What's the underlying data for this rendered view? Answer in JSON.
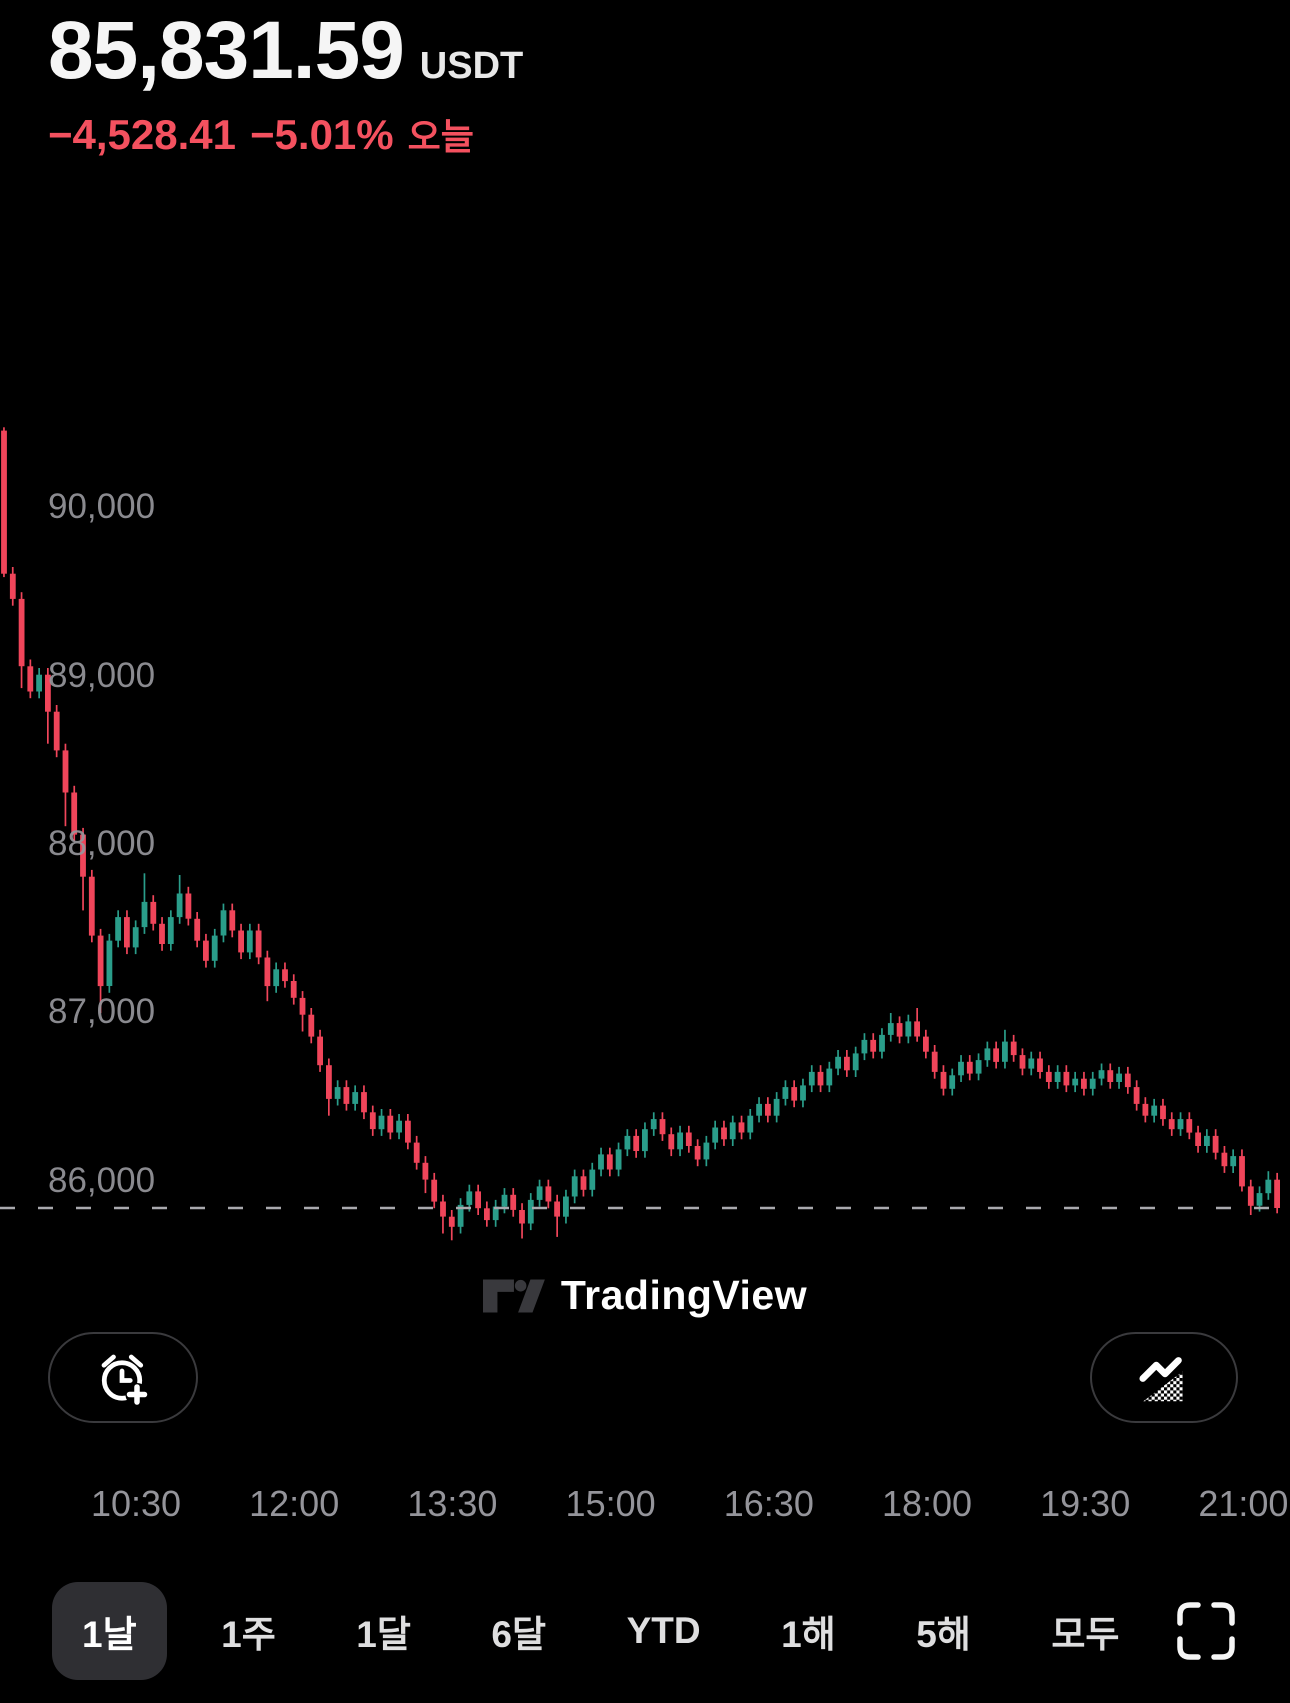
{
  "header": {
    "price": "85,831.59",
    "currency": "USDT",
    "change_abs": "−4,528.41",
    "change_pct": "−5.01%",
    "change_period": "오늘",
    "change_color": "#f4515f"
  },
  "watermark": {
    "label": "TradingView",
    "logo": "tradingview-logo",
    "color": "#39393d"
  },
  "buttons": {
    "left_icon": "alarm-clock-plus",
    "right_icon": "area-chart-style",
    "fullscreen_icon": "expand-corners"
  },
  "range_tabs": {
    "items": [
      {
        "label": "1날",
        "selected": true
      },
      {
        "label": "1주",
        "selected": false
      },
      {
        "label": "1달",
        "selected": false
      },
      {
        "label": "6달",
        "selected": false
      },
      {
        "label": "YTD",
        "selected": false
      },
      {
        "label": "1해",
        "selected": false
      },
      {
        "label": "5해",
        "selected": false
      },
      {
        "label": "모두",
        "selected": false
      }
    ]
  },
  "chart_data": {
    "type": "candlestick",
    "interval_minutes": 5,
    "time_start": "09:15",
    "current_price": 85831.59,
    "current_price_line": "dashed",
    "up_color": "#2a9d8a",
    "down_color": "#f0455a",
    "axis_text_color": "#96969c",
    "y_axis": {
      "ticks": [
        90000,
        89000,
        88000,
        87000,
        86000
      ],
      "tick_labels": [
        "90,000",
        "89,000",
        "88,000",
        "87,000",
        "86,000"
      ]
    },
    "x_axis": {
      "tick_labels": [
        "10:30",
        "12:00",
        "13:30",
        "15:00",
        "16:30",
        "18:00",
        "19:30",
        "21:00"
      ]
    },
    "candles": [
      [
        90450,
        90470,
        89580,
        89600
      ],
      [
        89600,
        89640,
        89410,
        89450
      ],
      [
        89450,
        89490,
        88920,
        89050
      ],
      [
        89050,
        89090,
        88860,
        88900
      ],
      [
        88900,
        89040,
        88860,
        89000
      ],
      [
        89000,
        89040,
        88590,
        88780
      ],
      [
        88780,
        88820,
        88510,
        88550
      ],
      [
        88550,
        88590,
        88100,
        88300
      ],
      [
        88300,
        88340,
        88010,
        88050
      ],
      [
        88050,
        88090,
        87600,
        87800
      ],
      [
        87800,
        87840,
        87410,
        87450
      ],
      [
        87450,
        87490,
        86990,
        87150
      ],
      [
        87150,
        87460,
        87110,
        87420
      ],
      [
        87420,
        87600,
        87380,
        87560
      ],
      [
        87560,
        87600,
        87340,
        87380
      ],
      [
        87380,
        87540,
        87340,
        87500
      ],
      [
        87500,
        87820,
        87460,
        87650
      ],
      [
        87650,
        87690,
        87480,
        87520
      ],
      [
        87520,
        87560,
        87360,
        87400
      ],
      [
        87400,
        87600,
        87360,
        87560
      ],
      [
        87560,
        87810,
        87520,
        87700
      ],
      [
        87700,
        87740,
        87510,
        87550
      ],
      [
        87550,
        87590,
        87380,
        87420
      ],
      [
        87420,
        87460,
        87260,
        87300
      ],
      [
        87300,
        87490,
        87260,
        87450
      ],
      [
        87450,
        87640,
        87410,
        87600
      ],
      [
        87600,
        87640,
        87440,
        87480
      ],
      [
        87480,
        87520,
        87310,
        87350
      ],
      [
        87350,
        87520,
        87310,
        87480
      ],
      [
        87480,
        87520,
        87280,
        87320
      ],
      [
        87320,
        87360,
        87060,
        87150
      ],
      [
        87150,
        87290,
        87110,
        87250
      ],
      [
        87250,
        87290,
        87140,
        87180
      ],
      [
        87180,
        87220,
        87040,
        87080
      ],
      [
        87080,
        87120,
        86880,
        86980
      ],
      [
        86980,
        87020,
        86810,
        86850
      ],
      [
        86850,
        86890,
        86640,
        86680
      ],
      [
        86680,
        86720,
        86380,
        86480
      ],
      [
        86480,
        86590,
        86440,
        86550
      ],
      [
        86550,
        86590,
        86410,
        86450
      ],
      [
        86450,
        86560,
        86410,
        86520
      ],
      [
        86520,
        86560,
        86360,
        86400
      ],
      [
        86400,
        86440,
        86260,
        86300
      ],
      [
        86300,
        86420,
        86260,
        86380
      ],
      [
        86380,
        86420,
        86240,
        86280
      ],
      [
        86280,
        86390,
        86240,
        86350
      ],
      [
        86350,
        86390,
        86180,
        86220
      ],
      [
        86220,
        86260,
        86060,
        86100
      ],
      [
        86100,
        86140,
        85920,
        86000
      ],
      [
        86000,
        86040,
        85830,
        85870
      ],
      [
        85870,
        85910,
        85680,
        85780
      ],
      [
        85780,
        85820,
        85640,
        85720
      ],
      [
        85720,
        85890,
        85680,
        85850
      ],
      [
        85850,
        85970,
        85810,
        85930
      ],
      [
        85930,
        85970,
        85790,
        85830
      ],
      [
        85830,
        85870,
        85720,
        85760
      ],
      [
        85760,
        85880,
        85720,
        85840
      ],
      [
        85840,
        85950,
        85800,
        85910
      ],
      [
        85910,
        85950,
        85780,
        85820
      ],
      [
        85820,
        85860,
        85650,
        85740
      ],
      [
        85740,
        85920,
        85700,
        85880
      ],
      [
        85880,
        86000,
        85840,
        85960
      ],
      [
        85960,
        86000,
        85830,
        85870
      ],
      [
        85870,
        85910,
        85660,
        85780
      ],
      [
        85780,
        85940,
        85740,
        85900
      ],
      [
        85900,
        86060,
        85860,
        86020
      ],
      [
        86020,
        86060,
        85900,
        85940
      ],
      [
        85940,
        86100,
        85900,
        86060
      ],
      [
        86060,
        86190,
        86020,
        86150
      ],
      [
        86150,
        86190,
        86020,
        86060
      ],
      [
        86060,
        86220,
        86020,
        86180
      ],
      [
        86180,
        86300,
        86140,
        86260
      ],
      [
        86260,
        86300,
        86130,
        86170
      ],
      [
        86170,
        86340,
        86130,
        86300
      ],
      [
        86300,
        86400,
        86260,
        86360
      ],
      [
        86360,
        86400,
        86230,
        86270
      ],
      [
        86270,
        86310,
        86140,
        86180
      ],
      [
        86180,
        86320,
        86140,
        86280
      ],
      [
        86280,
        86320,
        86160,
        86200
      ],
      [
        86200,
        86240,
        86080,
        86120
      ],
      [
        86120,
        86260,
        86080,
        86220
      ],
      [
        86220,
        86350,
        86180,
        86310
      ],
      [
        86310,
        86350,
        86200,
        86240
      ],
      [
        86240,
        86380,
        86200,
        86340
      ],
      [
        86340,
        86380,
        86240,
        86280
      ],
      [
        86280,
        86420,
        86240,
        86380
      ],
      [
        86380,
        86490,
        86340,
        86450
      ],
      [
        86450,
        86490,
        86340,
        86380
      ],
      [
        86380,
        86520,
        86340,
        86480
      ],
      [
        86480,
        86590,
        86440,
        86550
      ],
      [
        86550,
        86590,
        86430,
        86470
      ],
      [
        86470,
        86600,
        86430,
        86560
      ],
      [
        86560,
        86680,
        86520,
        86640
      ],
      [
        86640,
        86680,
        86520,
        86560
      ],
      [
        86560,
        86700,
        86520,
        86660
      ],
      [
        86660,
        86770,
        86620,
        86730
      ],
      [
        86730,
        86770,
        86610,
        86650
      ],
      [
        86650,
        86790,
        86610,
        86750
      ],
      [
        86750,
        86870,
        86710,
        86830
      ],
      [
        86830,
        86870,
        86720,
        86760
      ],
      [
        86760,
        86900,
        86720,
        86860
      ],
      [
        86860,
        86990,
        86820,
        86930
      ],
      [
        86930,
        86970,
        86810,
        86850
      ],
      [
        86850,
        86980,
        86810,
        86940
      ],
      [
        86940,
        87020,
        86820,
        86850
      ],
      [
        86850,
        86890,
        86720,
        86760
      ],
      [
        86760,
        86800,
        86600,
        86640
      ],
      [
        86640,
        86680,
        86500,
        86540
      ],
      [
        86540,
        86660,
        86500,
        86620
      ],
      [
        86620,
        86740,
        86580,
        86700
      ],
      [
        86700,
        86740,
        86590,
        86630
      ],
      [
        86630,
        86750,
        86590,
        86710
      ],
      [
        86710,
        86820,
        86670,
        86780
      ],
      [
        86780,
        86820,
        86660,
        86700
      ],
      [
        86700,
        86890,
        86660,
        86820
      ],
      [
        86820,
        86860,
        86700,
        86740
      ],
      [
        86740,
        86780,
        86620,
        86660
      ],
      [
        86660,
        86760,
        86620,
        86720
      ],
      [
        86720,
        86760,
        86600,
        86640
      ],
      [
        86640,
        86680,
        86540,
        86580
      ],
      [
        86580,
        86680,
        86540,
        86640
      ],
      [
        86640,
        86680,
        86520,
        86560
      ],
      [
        86560,
        86640,
        86520,
        86600
      ],
      [
        86600,
        86640,
        86500,
        86540
      ],
      [
        86540,
        86640,
        86500,
        86600
      ],
      [
        86600,
        86690,
        86560,
        86650
      ],
      [
        86650,
        86690,
        86540,
        86580
      ],
      [
        86580,
        86670,
        86540,
        86630
      ],
      [
        86630,
        86670,
        86510,
        86550
      ],
      [
        86550,
        86590,
        86410,
        86450
      ],
      [
        86450,
        86490,
        86340,
        86380
      ],
      [
        86380,
        86480,
        86340,
        86440
      ],
      [
        86440,
        86480,
        86320,
        86360
      ],
      [
        86360,
        86400,
        86260,
        86300
      ],
      [
        86300,
        86400,
        86260,
        86360
      ],
      [
        86360,
        86400,
        86240,
        86280
      ],
      [
        86280,
        86320,
        86160,
        86200
      ],
      [
        86200,
        86300,
        86160,
        86260
      ],
      [
        86260,
        86300,
        86120,
        86160
      ],
      [
        86160,
        86200,
        86040,
        86080
      ],
      [
        86080,
        86180,
        86040,
        86140
      ],
      [
        86140,
        86180,
        85930,
        85960
      ],
      [
        85960,
        86000,
        85790,
        85845
      ],
      [
        85845,
        85960,
        85810,
        85920
      ],
      [
        85920,
        86050,
        85880,
        86000
      ],
      [
        86000,
        86040,
        85800,
        85831.59
      ]
    ]
  }
}
